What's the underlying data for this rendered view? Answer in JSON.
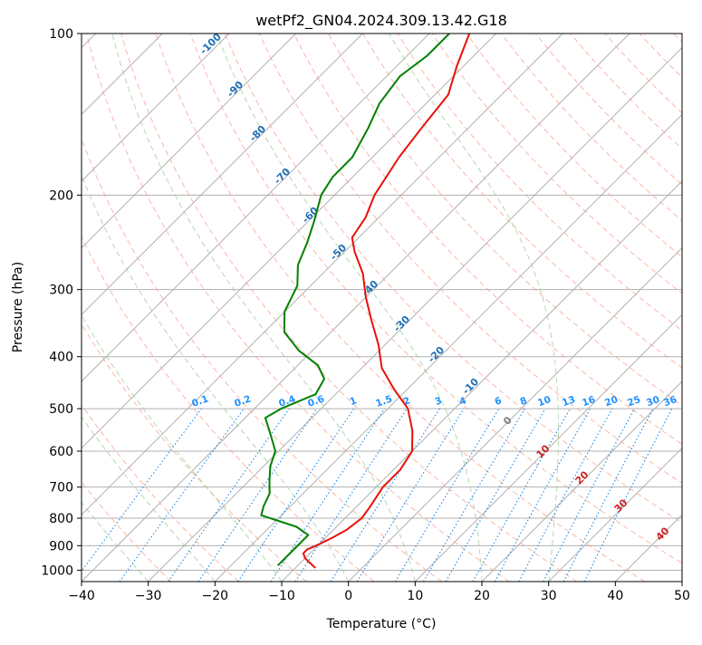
{
  "chart_data": {
    "type": "line",
    "title": "wetPf2_GN04.2024.309.13.42.G18",
    "xlabel": "Temperature (°C)",
    "ylabel": "Pressure (hPa)",
    "xlim": [
      -40,
      50
    ],
    "ylim": [
      1050,
      100
    ],
    "y_scale": "log",
    "skew": true,
    "grid": true,
    "x_ticks": [
      -40,
      -30,
      -20,
      -10,
      0,
      10,
      20,
      30,
      40,
      50
    ],
    "y_ticks": [
      100,
      200,
      300,
      400,
      500,
      600,
      700,
      800,
      900,
      1000
    ],
    "series": [
      {
        "role": "temperature",
        "color": "#e8100a",
        "points": [
          {
            "p": 990,
            "t": -7
          },
          {
            "p": 970,
            "t": -8.5
          },
          {
            "p": 950,
            "t": -10
          },
          {
            "p": 930,
            "t": -11
          },
          {
            "p": 915,
            "t": -11
          },
          {
            "p": 895,
            "t": -10
          },
          {
            "p": 870,
            "t": -9
          },
          {
            "p": 840,
            "t": -8
          },
          {
            "p": 800,
            "t": -7.5
          },
          {
            "p": 760,
            "t": -8
          },
          {
            "p": 700,
            "t": -9
          },
          {
            "p": 650,
            "t": -9
          },
          {
            "p": 600,
            "t": -10
          },
          {
            "p": 550,
            "t": -13
          },
          {
            "p": 500,
            "t": -17
          },
          {
            "p": 460,
            "t": -22
          },
          {
            "p": 420,
            "t": -27
          },
          {
            "p": 380,
            "t": -31
          },
          {
            "p": 340,
            "t": -36
          },
          {
            "p": 310,
            "t": -40
          },
          {
            "p": 280,
            "t": -44
          },
          {
            "p": 255,
            "t": -48.5
          },
          {
            "p": 240,
            "t": -51
          },
          {
            "p": 220,
            "t": -52
          },
          {
            "p": 200,
            "t": -54
          },
          {
            "p": 170,
            "t": -56
          },
          {
            "p": 150,
            "t": -57
          },
          {
            "p": 130,
            "t": -58
          },
          {
            "p": 115,
            "t": -61
          },
          {
            "p": 100,
            "t": -64
          }
        ]
      },
      {
        "role": "dewpoint",
        "color": "#008000",
        "points": [
          {
            "p": 980,
            "t": -13
          },
          {
            "p": 950,
            "t": -13
          },
          {
            "p": 920,
            "t": -13
          },
          {
            "p": 890,
            "t": -13
          },
          {
            "p": 860,
            "t": -13
          },
          {
            "p": 830,
            "t": -16
          },
          {
            "p": 790,
            "t": -23
          },
          {
            "p": 760,
            "t": -24
          },
          {
            "p": 720,
            "t": -25
          },
          {
            "p": 680,
            "t": -27
          },
          {
            "p": 640,
            "t": -29
          },
          {
            "p": 600,
            "t": -30.5
          },
          {
            "p": 555,
            "t": -34
          },
          {
            "p": 520,
            "t": -37
          },
          {
            "p": 500,
            "t": -36
          },
          {
            "p": 470,
            "t": -33
          },
          {
            "p": 440,
            "t": -34
          },
          {
            "p": 415,
            "t": -37
          },
          {
            "p": 390,
            "t": -42
          },
          {
            "p": 360,
            "t": -47
          },
          {
            "p": 330,
            "t": -50
          },
          {
            "p": 295,
            "t": -52
          },
          {
            "p": 270,
            "t": -55
          },
          {
            "p": 245,
            "t": -57
          },
          {
            "p": 225,
            "t": -59
          },
          {
            "p": 200,
            "t": -62
          },
          {
            "p": 185,
            "t": -63
          },
          {
            "p": 170,
            "t": -63
          },
          {
            "p": 150,
            "t": -65
          },
          {
            "p": 135,
            "t": -67
          },
          {
            "p": 120,
            "t": -68
          },
          {
            "p": 110,
            "t": -67
          },
          {
            "p": 100,
            "t": -67
          }
        ]
      }
    ],
    "dry_adiabat_labels": [
      "-100",
      "-90",
      "-80",
      "-70",
      "-60",
      "-50",
      "-40",
      "-30",
      "-20",
      "-10"
    ],
    "mixing_ratio_labels": [
      "0.1",
      "0.2",
      "0.4",
      "0.6",
      "1",
      "1.5",
      "2",
      "3",
      "4",
      "6",
      "8",
      "10",
      "13",
      "16",
      "20",
      "25",
      "30",
      "36"
    ],
    "moist_adiabat_labels": [
      "0",
      "10",
      "20",
      "30",
      "40"
    ],
    "colors": {
      "isotherm": "#b0b0b0",
      "dry_adiabat": "#f6a08a",
      "moist_adiabat": "#9fd09f",
      "mixing_ratio": "#1e88e5",
      "dry_label": "#1f6fb5",
      "mixing_label": "#1e90ff",
      "moist_label": "#cc2222",
      "moist_zero_label": "#808080",
      "tan_curve": "#d9bfa6"
    }
  }
}
